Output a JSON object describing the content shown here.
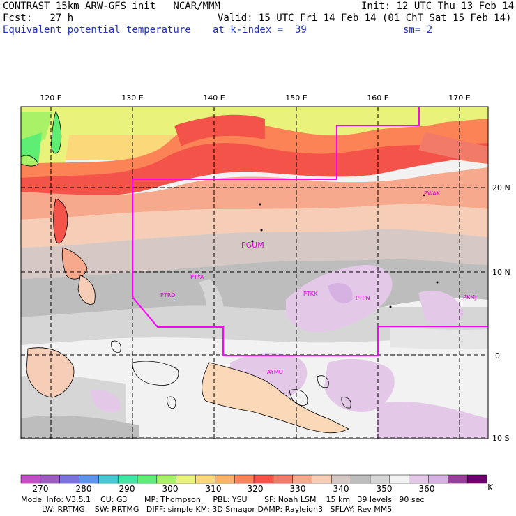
{
  "header": {
    "line1_left": "CONTRAST 15km ARW-GFS init   NCAR/MMM",
    "line1_right": "Init: 12 UTC Thu 13 Feb 14",
    "line2_left": "Fcst:   27 h",
    "line2_right": "Valid: 15 UTC Fri 14 Feb 14 (01 ChT Sat 15 Feb 14)",
    "line3_left": "Equivalent potential temperature",
    "line3_mid": "at k-index =  39",
    "line3_right": "sm= 2"
  },
  "map": {
    "lon_labels": [
      "120 E",
      "130 E",
      "140 E",
      "150 E",
      "160 E",
      "170 E"
    ],
    "lat_labels": [
      "20 N",
      "10 N",
      "0",
      "10 S"
    ],
    "stations": [
      "PGUM",
      "PTYA",
      "PTRO",
      "PTKK",
      "PTPN",
      "PKMJ",
      "PWAK",
      "AYMO"
    ]
  },
  "colorbar": {
    "colors": [
      "#c34fc7",
      "#9d5cc2",
      "#7b72dd",
      "#5f94ee",
      "#47c8d2",
      "#3fe6a4",
      "#5fee74",
      "#a9f268",
      "#e9f27a",
      "#fbd97a",
      "#fbb36a",
      "#fb8355",
      "#f4534a",
      "#f17a68",
      "#f6a98c",
      "#f6cdb6",
      "#d6c8c4",
      "#bdbdbd",
      "#d6d6d6",
      "#f2f2f2",
      "#e4c8e8",
      "#d6b2e3",
      "#9a3c9a",
      "#6c006c"
    ],
    "labels": [
      "270",
      "280",
      "290",
      "300",
      "310",
      "320",
      "330",
      "340",
      "350",
      "360",
      "K"
    ],
    "unit": "K"
  },
  "model_info": {
    "line1": "Model Info: V3.5.1    CU: G3       MP: Thompson     PBL: YSU       SF: Noah LSM    15 km   39 levels   90 sec",
    "line2": "LW: RRTMG    SW: RRTMG   DIFF: simple KM: 3D Smagor DAMP: Rayleigh3   SFLAY: Rev MM5"
  }
}
